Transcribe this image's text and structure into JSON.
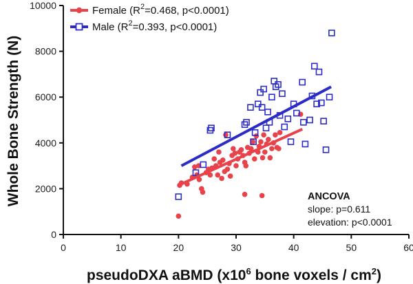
{
  "chart_data": {
    "type": "scatter",
    "title": "",
    "xlabel": {
      "main": "pseudoDXA aBMD (x10",
      "sup1": "6",
      "mid": " bone voxels / cm",
      "sup2": "2",
      "end": ")"
    },
    "ylabel": "Whole Bone Strength (N)",
    "xlim": [
      0,
      60
    ],
    "ylim": [
      0,
      10000
    ],
    "x_ticks": [
      0,
      10,
      20,
      30,
      40,
      50,
      60
    ],
    "y_ticks": [
      0,
      2000,
      4000,
      6000,
      8000,
      10000
    ],
    "legend_position": "top-left",
    "grid": false,
    "series": [
      {
        "key": "female",
        "name": "Female",
        "legend_label": {
          "pre": "Female (R",
          "sup": "2",
          "post": "=0.468, p<0.0001)"
        },
        "color": "#e8424a",
        "marker": "circle",
        "fit": {
          "x": [
            20,
            41.5
          ],
          "y": [
            2150,
            4600
          ]
        },
        "points": [
          [
            20.0,
            800
          ],
          [
            20.2,
            2150
          ],
          [
            20.5,
            2250
          ],
          [
            21.5,
            2200
          ],
          [
            22.4,
            2500
          ],
          [
            22.8,
            2950
          ],
          [
            23.2,
            2600
          ],
          [
            23.5,
            3000
          ],
          [
            23.6,
            2400
          ],
          [
            24.0,
            2000
          ],
          [
            24.2,
            1850
          ],
          [
            24.8,
            2700
          ],
          [
            25.2,
            2850
          ],
          [
            25.5,
            2600
          ],
          [
            25.8,
            2900
          ],
          [
            26.2,
            3300
          ],
          [
            26.5,
            3000
          ],
          [
            26.8,
            2600
          ],
          [
            27.0,
            3600
          ],
          [
            27.2,
            3150
          ],
          [
            27.5,
            2450
          ],
          [
            27.7,
            3250
          ],
          [
            28.0,
            2750
          ],
          [
            28.2,
            4350
          ],
          [
            28.5,
            2850
          ],
          [
            28.8,
            3100
          ],
          [
            29.0,
            2550
          ],
          [
            29.3,
            3450
          ],
          [
            29.5,
            3750
          ],
          [
            29.8,
            3550
          ],
          [
            30.0,
            3000
          ],
          [
            30.3,
            3300
          ],
          [
            30.6,
            3600
          ],
          [
            30.9,
            3700
          ],
          [
            31.2,
            3450
          ],
          [
            31.5,
            3150
          ],
          [
            31.7,
            3000
          ],
          [
            32.0,
            3800
          ],
          [
            32.3,
            3550
          ],
          [
            32.6,
            3750
          ],
          [
            32.9,
            4050
          ],
          [
            33.2,
            3300
          ],
          [
            33.5,
            4300
          ],
          [
            33.8,
            3600
          ],
          [
            34.0,
            3850
          ],
          [
            34.3,
            4050
          ],
          [
            34.6,
            3350
          ],
          [
            34.8,
            4350
          ],
          [
            35.0,
            3600
          ],
          [
            35.3,
            3950
          ],
          [
            35.6,
            4150
          ],
          [
            35.9,
            3350
          ],
          [
            36.2,
            3750
          ],
          [
            36.5,
            4000
          ],
          [
            36.8,
            4350
          ],
          [
            37.1,
            3800
          ],
          [
            37.4,
            3750
          ],
          [
            37.6,
            4450
          ],
          [
            31.5,
            1750
          ],
          [
            34.5,
            1700
          ],
          [
            41.2,
            5250
          ]
        ]
      },
      {
        "key": "male",
        "name": "Male",
        "legend_label": {
          "pre": "Male (R",
          "sup": "2",
          "post": "=0.393, p<0.0001)"
        },
        "color": "#2b2bc7",
        "marker": "square",
        "fit": {
          "x": [
            20.5,
            46.5
          ],
          "y": [
            3000,
            6450
          ]
        },
        "points": [
          [
            20.0,
            1650
          ],
          [
            23.0,
            2700
          ],
          [
            24.3,
            3050
          ],
          [
            25.5,
            4550
          ],
          [
            25.7,
            4650
          ],
          [
            28.5,
            4350
          ],
          [
            31.5,
            4800
          ],
          [
            31.8,
            4900
          ],
          [
            32.5,
            5550
          ],
          [
            33.0,
            4050
          ],
          [
            33.3,
            4450
          ],
          [
            33.8,
            5700
          ],
          [
            34.2,
            6200
          ],
          [
            34.5,
            5550
          ],
          [
            34.8,
            6350
          ],
          [
            35.2,
            4650
          ],
          [
            35.5,
            5350
          ],
          [
            35.8,
            4900
          ],
          [
            36.2,
            6000
          ],
          [
            36.6,
            6700
          ],
          [
            36.9,
            6450
          ],
          [
            37.3,
            6550
          ],
          [
            37.6,
            5200
          ],
          [
            38.0,
            6150
          ],
          [
            38.4,
            4700
          ],
          [
            39.0,
            5050
          ],
          [
            39.5,
            4050
          ],
          [
            40.0,
            5700
          ],
          [
            41.5,
            6650
          ],
          [
            41.7,
            4900
          ],
          [
            42.0,
            3950
          ],
          [
            42.8,
            5000
          ],
          [
            43.2,
            6050
          ],
          [
            43.6,
            7350
          ],
          [
            44.0,
            5700
          ],
          [
            44.4,
            7100
          ],
          [
            44.8,
            5750
          ],
          [
            45.2,
            4950
          ],
          [
            45.6,
            3700
          ],
          [
            46.2,
            6000
          ],
          [
            46.6,
            8800
          ],
          [
            40.5,
            5300
          ]
        ]
      }
    ],
    "annotation": {
      "title": "ANCOVA",
      "lines": [
        "slope: p=0.611",
        "elevation: p<0.0001"
      ]
    }
  }
}
